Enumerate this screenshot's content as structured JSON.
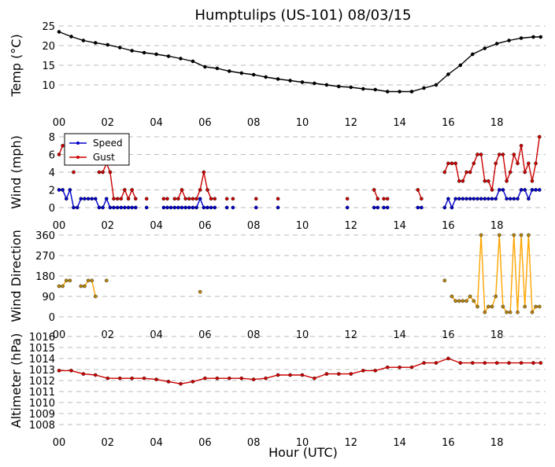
{
  "title": "Humptulips (US-101) 08/03/15",
  "xlabel": "Hour (UTC)",
  "x_tick_labels": [
    "00",
    "02",
    "04",
    "06",
    "08",
    "10",
    "12",
    "14",
    "16",
    "18"
  ],
  "chart_data": [
    {
      "type": "line",
      "ylabel": "Temp (°C)",
      "xlim": [
        0,
        20
      ],
      "ylim": [
        5,
        25
      ],
      "yticks": [
        10,
        15,
        20,
        25
      ],
      "grid": true,
      "series": [
        {
          "color": "#000000",
          "x": [
            0,
            0.5,
            1,
            1.5,
            2,
            2.5,
            3,
            3.5,
            4,
            4.5,
            5,
            5.5,
            6,
            6.5,
            7,
            7.5,
            8,
            8.5,
            9,
            9.5,
            10,
            10.5,
            11,
            11.5,
            12,
            12.5,
            13,
            13.5,
            14,
            14.5,
            15,
            15.5,
            16,
            16.5,
            17,
            17.5,
            18,
            18.5,
            19,
            19.5,
            19.8
          ],
          "values": [
            23.5,
            22.3,
            21.3,
            20.7,
            20.2,
            19.5,
            18.7,
            18.2,
            17.8,
            17.3,
            16.7,
            16,
            14.6,
            14.2,
            13.5,
            13,
            12.6,
            12,
            11.5,
            11.1,
            10.7,
            10.4,
            10,
            9.6,
            9.4,
            9,
            8.8,
            8.3,
            8.3,
            8.3,
            9.2,
            10,
            12.7,
            15,
            17.8,
            19.3,
            20.5,
            21.3,
            21.9,
            22.2,
            22.2
          ]
        }
      ]
    },
    {
      "type": "line",
      "ylabel": "Wind (mph)",
      "xlim": [
        0,
        20
      ],
      "ylim": [
        0,
        8
      ],
      "yticks": [
        0,
        2,
        4,
        6,
        8
      ],
      "grid": true,
      "legend": "top-left",
      "series": [
        {
          "name": "Speed",
          "color": "#0000cc",
          "segments": [
            {
              "x": [
                0,
                0.15,
                0.3,
                0.45,
                0.6,
                0.75,
                0.9,
                1.05,
                1.2,
                1.35,
                1.5,
                1.65,
                1.8,
                1.95,
                2.1,
                2.25,
                2.4,
                2.55,
                2.7,
                2.85,
                3.0,
                3.15
              ],
              "values": [
                2,
                2,
                1,
                2,
                0,
                0,
                1,
                1,
                1,
                1,
                1,
                0,
                0,
                1,
                0,
                0,
                0,
                0,
                0,
                0,
                0,
                0
              ]
            },
            {
              "x": [
                3.6
              ],
              "values": [
                0
              ]
            },
            {
              "x": [
                4.3,
                4.45,
                4.6,
                4.75,
                4.9,
                5.05,
                5.2,
                5.35,
                5.5,
                5.65,
                5.8,
                5.95,
                6.1,
                6.25,
                6.4
              ],
              "values": [
                0,
                0,
                0,
                0,
                0,
                0,
                0,
                0,
                0,
                0,
                1,
                0,
                0,
                0,
                0
              ]
            },
            {
              "x": [
                6.9
              ],
              "values": [
                0
              ]
            },
            {
              "x": [
                7.15
              ],
              "values": [
                0
              ]
            },
            {
              "x": [
                8.1
              ],
              "values": [
                0
              ]
            },
            {
              "x": [
                9.0
              ],
              "values": [
                0
              ]
            },
            {
              "x": [
                11.85
              ],
              "values": [
                0
              ]
            },
            {
              "x": [
                12.95,
                13.1
              ],
              "values": [
                0,
                0
              ]
            },
            {
              "x": [
                13.35,
                13.5
              ],
              "values": [
                0,
                0
              ]
            },
            {
              "x": [
                14.75,
                14.9
              ],
              "values": [
                0,
                0
              ]
            },
            {
              "x": [
                15.85,
                16.0,
                16.15,
                16.3,
                16.45,
                16.6,
                16.75,
                16.9,
                17.05,
                17.2,
                17.35,
                17.5,
                17.65,
                17.8,
                17.95,
                18.1,
                18.25,
                18.4,
                18.55,
                18.7,
                18.85,
                19.0,
                19.15,
                19.3,
                19.45,
                19.6,
                19.75
              ],
              "values": [
                0,
                1,
                0,
                1,
                1,
                1,
                1,
                1,
                1,
                1,
                1,
                1,
                1,
                1,
                1,
                2,
                2,
                1,
                1,
                1,
                1,
                2,
                2,
                1,
                2,
                2,
                2
              ]
            }
          ]
        },
        {
          "name": "Gust",
          "color": "#cc0000",
          "segments": [
            {
              "x": [
                0,
                0.15
              ],
              "values": [
                6,
                7
              ]
            },
            {
              "x": [
                0.6
              ],
              "values": [
                4
              ]
            },
            {
              "x": [
                1.65,
                1.8,
                1.95,
                2.1,
                2.25,
                2.4,
                2.55,
                2.7,
                2.85,
                3.0,
                3.15
              ],
              "values": [
                4,
                4,
                5,
                4,
                1,
                1,
                1,
                2,
                1,
                2,
                1
              ]
            },
            {
              "x": [
                3.6
              ],
              "values": [
                1
              ]
            },
            {
              "x": [
                4.3,
                4.45
              ],
              "values": [
                1,
                1
              ]
            },
            {
              "x": [
                4.75,
                4.9,
                5.05,
                5.2,
                5.35,
                5.5,
                5.65,
                5.8,
                5.95,
                6.1,
                6.25,
                6.4
              ],
              "values": [
                1,
                1,
                2,
                1,
                1,
                1,
                1,
                2,
                4,
                2,
                1,
                1
              ]
            },
            {
              "x": [
                6.9
              ],
              "values": [
                1
              ]
            },
            {
              "x": [
                7.15
              ],
              "values": [
                1
              ]
            },
            {
              "x": [
                8.1
              ],
              "values": [
                1
              ]
            },
            {
              "x": [
                9.0
              ],
              "values": [
                1
              ]
            },
            {
              "x": [
                11.85
              ],
              "values": [
                1
              ]
            },
            {
              "x": [
                12.95,
                13.1
              ],
              "values": [
                2,
                1
              ]
            },
            {
              "x": [
                13.35,
                13.5
              ],
              "values": [
                1,
                1
              ]
            },
            {
              "x": [
                14.75,
                14.9
              ],
              "values": [
                2,
                1
              ]
            },
            {
              "x": [
                15.85,
                16.0,
                16.15,
                16.3,
                16.45,
                16.6,
                16.75,
                16.9,
                17.05,
                17.2,
                17.35,
                17.5,
                17.65,
                17.8,
                17.95,
                18.1,
                18.25,
                18.4,
                18.55,
                18.7,
                18.85,
                19.0,
                19.15,
                19.3,
                19.45,
                19.6,
                19.75
              ],
              "values": [
                4,
                5,
                5,
                5,
                3,
                3,
                4,
                4,
                5,
                6,
                6,
                3,
                3,
                2,
                5,
                6,
                6,
                3,
                4,
                6,
                5,
                7,
                4,
                5,
                3,
                5,
                8
              ]
            }
          ]
        }
      ]
    },
    {
      "type": "line",
      "ylabel": "Wind Direction",
      "xlim": [
        0,
        20
      ],
      "ylim": [
        0,
        360
      ],
      "yticks": [
        0,
        90,
        180,
        270,
        360
      ],
      "grid": true,
      "series": [
        {
          "color": "#ffa500",
          "segments": [
            {
              "x": [
                0,
                0.15,
                0.3,
                0.45
              ],
              "values": [
                135,
                135,
                160,
                160
              ]
            },
            {
              "x": [
                0.9,
                1.05,
                1.2,
                1.35,
                1.5
              ],
              "values": [
                135,
                135,
                160,
                160,
                90
              ]
            },
            {
              "x": [
                1.95
              ],
              "values": [
                160
              ]
            },
            {
              "x": [
                5.8
              ],
              "values": [
                110
              ]
            },
            {
              "x": [
                15.85
              ],
              "values": [
                160
              ]
            },
            {
              "x": [
                16.15,
                16.3,
                16.45,
                16.6,
                16.75,
                16.9,
                17.05,
                17.2,
                17.35,
                17.5,
                17.65,
                17.8,
                17.95,
                18.1,
                18.25,
                18.4,
                18.55,
                18.7,
                18.85,
                19.0,
                19.15,
                19.3,
                19.45,
                19.6,
                19.75
              ],
              "values": [
                90,
                70,
                70,
                70,
                70,
                90,
                70,
                45,
                360,
                20,
                45,
                45,
                90,
                360,
                45,
                20,
                20,
                360,
                20,
                360,
                45,
                360,
                20,
                45,
                45
              ]
            }
          ]
        }
      ]
    },
    {
      "type": "line",
      "ylabel": "Altimeter (hPa)",
      "xlim": [
        0,
        20
      ],
      "ylim": [
        1008,
        1016
      ],
      "yticks": [
        1008,
        1009,
        1010,
        1011,
        1012,
        1013,
        1014,
        1015,
        1016
      ],
      "grid": true,
      "series": [
        {
          "color": "#cc0000",
          "x": [
            0,
            0.5,
            1,
            1.5,
            2,
            2.5,
            3,
            3.5,
            4,
            4.5,
            5,
            5.5,
            6,
            6.5,
            7,
            7.5,
            8,
            8.5,
            9,
            9.5,
            10,
            10.5,
            11,
            11.5,
            12,
            12.5,
            13,
            13.5,
            14,
            14.5,
            15,
            15.5,
            16,
            16.5,
            17,
            17.5,
            18,
            18.5,
            19,
            19.5,
            19.8
          ],
          "values": [
            1012.9,
            1012.9,
            1012.6,
            1012.5,
            1012.2,
            1012.2,
            1012.2,
            1012.2,
            1012.1,
            1011.9,
            1011.7,
            1011.9,
            1012.2,
            1012.2,
            1012.2,
            1012.2,
            1012.1,
            1012.2,
            1012.5,
            1012.5,
            1012.5,
            1012.2,
            1012.6,
            1012.6,
            1012.6,
            1012.9,
            1012.9,
            1013.2,
            1013.2,
            1013.2,
            1013.6,
            1013.6,
            1014.0,
            1013.6,
            1013.6,
            1013.6,
            1013.6,
            1013.6,
            1013.6,
            1013.6,
            1013.6
          ]
        }
      ]
    }
  ]
}
